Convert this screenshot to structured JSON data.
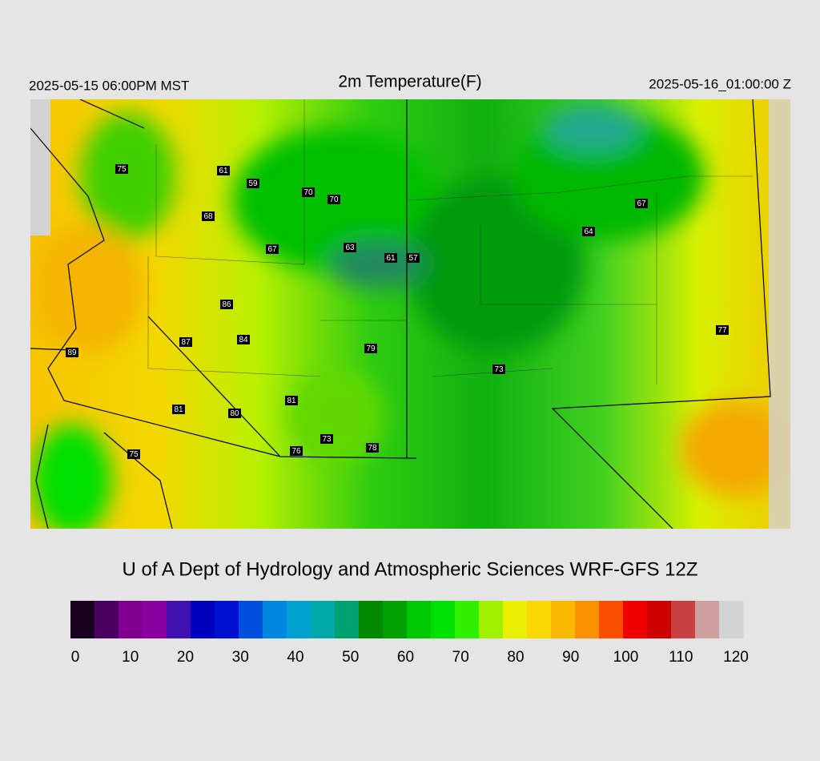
{
  "header": {
    "valid_local": "2025-05-15 06:00PM MST",
    "title": "2m Temperature(F)",
    "valid_utc": "2025-05-16_01:00:00 Z"
  },
  "stations": [
    75,
    61,
    59,
    70,
    70,
    68,
    67,
    64,
    67,
    63,
    61,
    57,
    86,
    87,
    84,
    89,
    79,
    77,
    73,
    81,
    81,
    80,
    73,
    76,
    78,
    75
  ],
  "credit": "U of A Dept of Hydrology and Atmospheric Sciences WRF-GFS 12Z",
  "colorbar": {
    "ticks": [
      0,
      10,
      20,
      30,
      40,
      50,
      60,
      70,
      80,
      90,
      100,
      110,
      120
    ]
  }
}
